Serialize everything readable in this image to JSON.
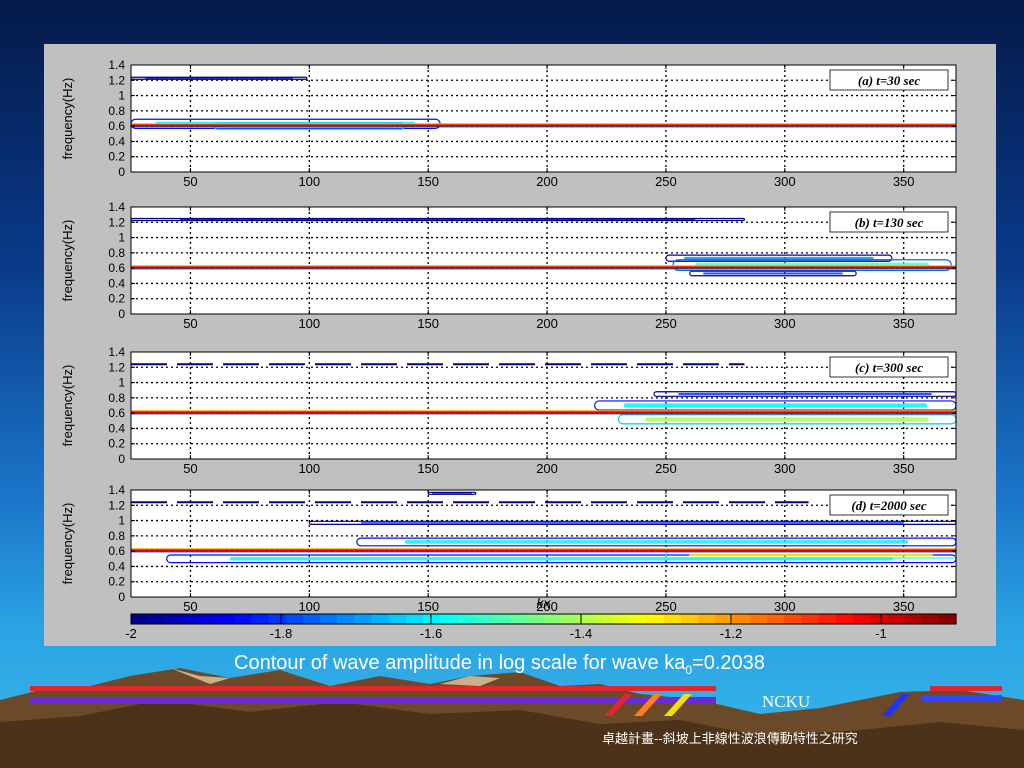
{
  "slide": {
    "caption_main": "Contour of wave amplitude in log scale for wave ka",
    "caption_sub": "0",
    "caption_value": "=0.2038",
    "org": "NCKU",
    "footer": "卓越計畫--斜坡上非線性波浪傳動特性之研究"
  },
  "chart_data": {
    "type": "heatmap",
    "shared_xlabel": "kx",
    "xlim": [
      25,
      372
    ],
    "xticks": [
      50,
      100,
      150,
      200,
      250,
      300,
      350
    ],
    "ylim": [
      0,
      1.4
    ],
    "yticks": [
      0,
      0.2,
      0.4,
      0.6,
      0.8,
      1,
      1.2,
      1.4
    ],
    "ytick_labels": [
      "0",
      "0.2",
      "0.4",
      "0.6",
      "0.8",
      "1",
      "1.2",
      "1.4"
    ],
    "grid": true,
    "panels": [
      {
        "annotation": "(a) t=30 sec",
        "ylabel": "frequency(Hz)",
        "primary_band": {
          "freq": 0.61,
          "x_start": 25,
          "x_end": 372,
          "level": -1.0
        },
        "features": [
          {
            "freq": 1.23,
            "x_start": 25,
            "x_end": 99,
            "level": -1.9,
            "halfwidth": 0.01
          },
          {
            "freq": 0.63,
            "x_start": 25,
            "x_end": 155,
            "level": -1.6,
            "halfwidth": 0.06
          },
          {
            "freq": 0.6,
            "x_start": 60,
            "x_end": 140,
            "level": -1.4,
            "halfwidth": 0.04
          }
        ]
      },
      {
        "annotation": "(b) t=130 sec",
        "ylabel": "frequency(Hz)",
        "primary_band": {
          "freq": 0.61,
          "x_start": 25,
          "x_end": 372,
          "level": -1.0
        },
        "features": [
          {
            "freq": 1.24,
            "x_start": 25,
            "x_end": 283,
            "level": -1.9,
            "halfwidth": 0.01
          },
          {
            "freq": 0.73,
            "x_start": 250,
            "x_end": 345,
            "level": -1.7,
            "halfwidth": 0.04
          },
          {
            "freq": 0.64,
            "x_start": 253,
            "x_end": 370,
            "level": -1.5,
            "halfwidth": 0.07
          },
          {
            "freq": 0.53,
            "x_start": 260,
            "x_end": 330,
            "level": -1.8,
            "halfwidth": 0.03
          }
        ]
      },
      {
        "annotation": "(c) t=300 sec",
        "ylabel": "frequency(Hz)",
        "primary_band": {
          "freq": 0.61,
          "x_start": 25,
          "x_end": 372,
          "level": -1.0
        },
        "features": [
          {
            "freq": 1.24,
            "x_start": 25,
            "x_end": 283,
            "level": -1.9,
            "halfwidth": 0.01,
            "dashed": true
          },
          {
            "freq": 0.85,
            "x_start": 245,
            "x_end": 372,
            "level": -1.8,
            "halfwidth": 0.03
          },
          {
            "freq": 0.7,
            "x_start": 220,
            "x_end": 372,
            "level": -1.6,
            "halfwidth": 0.06
          },
          {
            "freq": 0.52,
            "x_start": 230,
            "x_end": 372,
            "level": -1.4,
            "halfwidth": 0.06
          }
        ]
      },
      {
        "annotation": "(d) t=2000 sec",
        "ylabel": "frequency(Hz)",
        "primary_band": {
          "freq": 0.61,
          "x_start": 25,
          "x_end": 372,
          "level": -1.0
        },
        "features": [
          {
            "freq": 1.24,
            "x_start": 25,
            "x_end": 310,
            "level": -1.9,
            "halfwidth": 0.01,
            "dashed": true
          },
          {
            "freq": 1.36,
            "x_start": 150,
            "x_end": 170,
            "level": -1.9,
            "halfwidth": 0.01
          },
          {
            "freq": 0.97,
            "x_start": 100,
            "x_end": 372,
            "level": -1.8,
            "halfwidth": 0.02
          },
          {
            "freq": 0.72,
            "x_start": 120,
            "x_end": 372,
            "level": -1.6,
            "halfwidth": 0.05
          },
          {
            "freq": 0.5,
            "x_start": 40,
            "x_end": 372,
            "level": -1.6,
            "halfwidth": 0.05
          },
          {
            "freq": 0.55,
            "x_start": 250,
            "x_end": 372,
            "level": -1.3,
            "halfwidth": 0.04
          }
        ]
      }
    ],
    "colorbar": {
      "range": [
        -2,
        -0.9
      ],
      "ticks": [
        -2,
        -1.8,
        -1.6,
        -1.4,
        -1.2,
        -1
      ],
      "tick_labels": [
        "-2",
        "-1.8",
        "-1.6",
        "-1.4",
        "-1.2",
        "-1"
      ],
      "colormap": "jet"
    }
  },
  "colors": {
    "figure_background": "#c0c0c0",
    "axes_background": "#ffffff",
    "slide_top": "#041a4a",
    "slide_bottom": "#3ab7ea",
    "stripe_red": "#e3262e",
    "stripe_purple": "#6a2bd6"
  }
}
